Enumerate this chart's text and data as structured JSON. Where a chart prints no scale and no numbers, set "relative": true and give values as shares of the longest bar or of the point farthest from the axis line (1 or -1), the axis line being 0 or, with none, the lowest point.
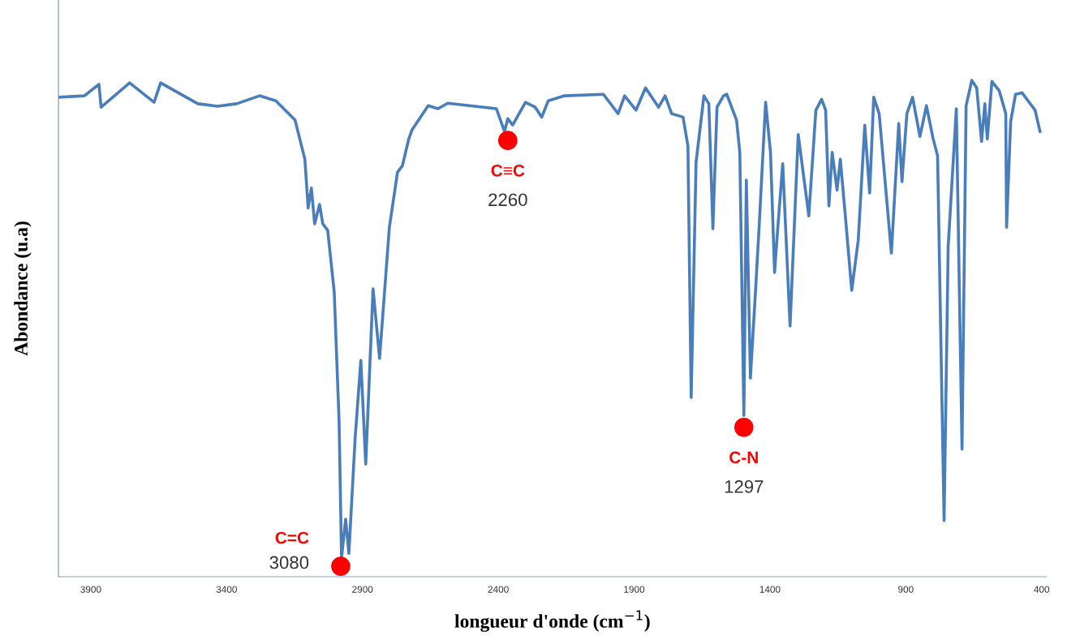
{
  "chart_data": {
    "type": "line",
    "relative": true,
    "xlabel": "longueur d'onde (cm$^{−1}$)",
    "ylabel": "Abondance (u.a)",
    "xlim": [
      4019,
      382
    ],
    "xticks": [
      3900,
      3400,
      2900,
      2400,
      1900,
      1400,
      900,
      400
    ],
    "tick_labels": "x",
    "grid": false,
    "legend": false,
    "marker": "none",
    "line_style": "solid",
    "series": [
      {
        "color": "#4a7ebb",
        "x": [
          4019,
          3924,
          3870,
          3862,
          3757,
          3667,
          3643,
          3578,
          3506,
          3434,
          3363,
          3279,
          3219,
          3148,
          3112,
          3100,
          3088,
          3076,
          3058,
          3046,
          3028,
          3004,
          2986,
          2977,
          2962,
          2950,
          2927,
          2906,
          2888,
          2861,
          2837,
          2801,
          2771,
          2753,
          2730,
          2718,
          2658,
          2622,
          2586,
          2407,
          2377,
          2365,
          2347,
          2300,
          2264,
          2240,
          2216,
          2156,
          2013,
          1959,
          1935,
          1893,
          1858,
          1810,
          1786,
          1762,
          1720,
          1702,
          1690,
          1672,
          1643,
          1625,
          1610,
          1595,
          1571,
          1559,
          1523,
          1511,
          1496,
          1487,
          1472,
          1452,
          1440,
          1416,
          1398,
          1383,
          1371,
          1353,
          1326,
          1296,
          1257,
          1231,
          1210,
          1195,
          1183,
          1171,
          1153,
          1141,
          1123,
          1099,
          1075,
          1051,
          1033,
          1018,
          998,
          953,
          926,
          914,
          896,
          875,
          848,
          824,
          800,
          783,
          759,
          744,
          714,
          693,
          678,
          657,
          639,
          621,
          609,
          600,
          583,
          556,
          532,
          529,
          514,
          496,
          472,
          424,
          406
        ],
        "values": [
          0.966,
          0.969,
          0.992,
          0.946,
          0.995,
          0.956,
          0.995,
          0.975,
          0.953,
          0.948,
          0.953,
          0.969,
          0.959,
          0.92,
          0.841,
          0.743,
          0.783,
          0.711,
          0.75,
          0.711,
          0.698,
          0.574,
          0.312,
          0.038,
          0.116,
          0.047,
          0.279,
          0.436,
          0.227,
          0.58,
          0.44,
          0.704,
          0.815,
          0.828,
          0.881,
          0.9,
          0.949,
          0.943,
          0.954,
          0.943,
          0.897,
          0.923,
          0.91,
          0.956,
          0.946,
          0.926,
          0.959,
          0.969,
          0.972,
          0.933,
          0.969,
          0.94,
          0.985,
          0.946,
          0.969,
          0.933,
          0.926,
          0.868,
          0.361,
          0.835,
          0.969,
          0.953,
          0.701,
          0.946,
          0.969,
          0.972,
          0.92,
          0.855,
          0.325,
          0.799,
          0.4,
          0.587,
          0.704,
          0.956,
          0.855,
          0.613,
          0.704,
          0.832,
          0.505,
          0.891,
          0.727,
          0.94,
          0.962,
          0.94,
          0.747,
          0.855,
          0.779,
          0.841,
          0.73,
          0.577,
          0.678,
          0.91,
          0.773,
          0.966,
          0.933,
          0.652,
          0.913,
          0.796,
          0.933,
          0.966,
          0.887,
          0.949,
          0.884,
          0.848,
          0.113,
          0.665,
          0.943,
          0.257,
          0.949,
          1,
          0.985,
          0.877,
          0.953,
          0.882,
          0.998,
          0.979,
          0.933,
          0.704,
          0.917,
          0.972,
          0.975,
          0.94,
          0.897
        ]
      }
    ],
    "annotations": [
      {
        "text": "C=C",
        "x": 2980,
        "y": 0.021
      },
      "3080",
      {
        "text": "C≡C",
        "x": 2365,
        "y": 0.879
      },
      "2260",
      {
        "text": "C-N",
        "x": 1496,
        "y": 0.301
      },
      "1297"
    ]
  }
}
